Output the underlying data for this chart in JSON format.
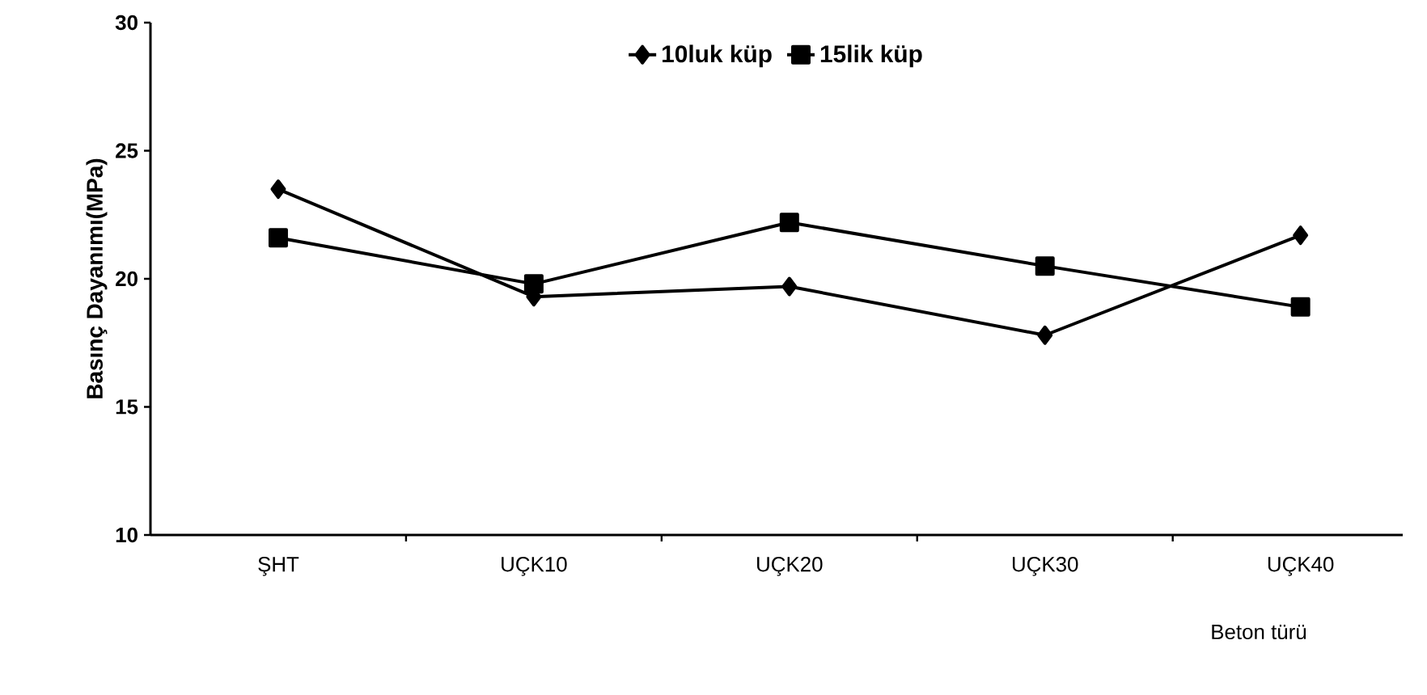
{
  "chart_data": {
    "type": "line",
    "xlabel": "Beton türü",
    "ylabel": "Basınç Dayanımı(MPa)",
    "categories": [
      "ŞHT",
      "UÇK10",
      "UÇK20",
      "UÇK30",
      "UÇK40"
    ],
    "series": [
      {
        "name": "10luk küp",
        "color": "#000000",
        "marker": "diamond",
        "values": [
          23.5,
          19.3,
          19.7,
          17.8,
          21.7
        ]
      },
      {
        "name": "15lik küp",
        "color": "#000000",
        "marker": "square",
        "values": [
          21.6,
          19.8,
          22.2,
          20.5,
          18.9
        ]
      }
    ],
    "ylim": [
      10,
      30
    ],
    "yticks": [
      10,
      15,
      20,
      25,
      30
    ],
    "grid": false,
    "legend": "top",
    "line_style": "solid"
  }
}
